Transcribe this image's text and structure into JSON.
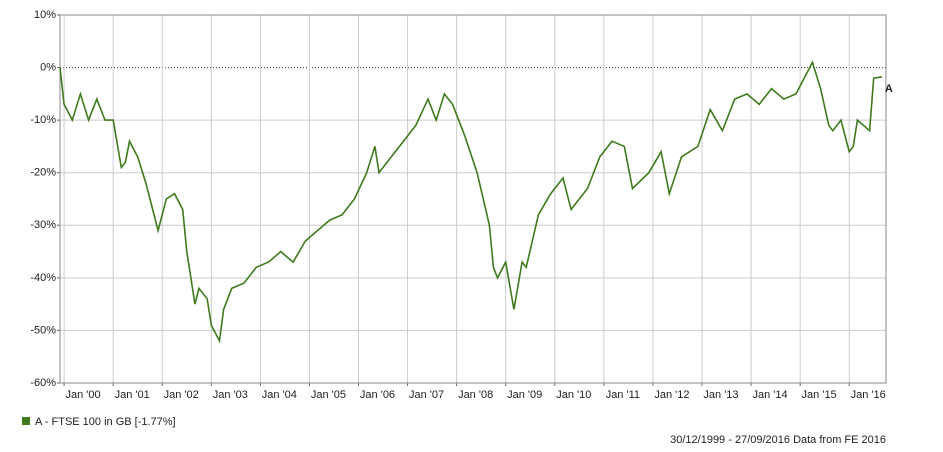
{
  "chart_data": {
    "type": "line",
    "x": [
      "1999-12",
      "2000-01",
      "2000-03",
      "2000-05",
      "2000-07",
      "2000-09",
      "2000-11",
      "2001-01",
      "2001-03",
      "2001-04",
      "2001-05",
      "2001-07",
      "2001-09",
      "2001-10",
      "2001-12",
      "2002-02",
      "2002-04",
      "2002-06",
      "2002-07",
      "2002-08",
      "2002-09",
      "2002-10",
      "2002-12",
      "2003-01",
      "2003-03",
      "2003-04",
      "2003-06",
      "2003-09",
      "2003-12",
      "2004-03",
      "2004-06",
      "2004-09",
      "2004-12",
      "2005-03",
      "2005-06",
      "2005-09",
      "2005-12",
      "2006-03",
      "2006-05",
      "2006-06",
      "2006-09",
      "2006-12",
      "2007-03",
      "2007-06",
      "2007-08",
      "2007-10",
      "2007-12",
      "2008-03",
      "2008-06",
      "2008-09",
      "2008-10",
      "2008-11",
      "2009-01",
      "2009-03",
      "2009-05",
      "2009-06",
      "2009-09",
      "2009-12",
      "2010-03",
      "2010-05",
      "2010-09",
      "2010-12",
      "2011-03",
      "2011-06",
      "2011-08",
      "2011-12",
      "2012-03",
      "2012-05",
      "2012-08",
      "2012-12",
      "2013-03",
      "2013-06",
      "2013-09",
      "2013-12",
      "2014-03",
      "2014-06",
      "2014-09",
      "2014-12",
      "2015-02",
      "2015-04",
      "2015-06",
      "2015-08",
      "2015-09",
      "2015-11",
      "2016-01",
      "2016-02",
      "2016-03",
      "2016-06",
      "2016-07",
      "2016-09"
    ],
    "series": [
      {
        "name": "A - FTSE 100 in GB [-1.77%]",
        "short_name": "A",
        "color": "#3f7a1c",
        "values": [
          0,
          -7,
          -10,
          -5,
          -10,
          -6,
          -10,
          -10,
          -19,
          -18,
          -14,
          -17,
          -22,
          -25,
          -31,
          -25,
          -24,
          -27,
          -35,
          -40,
          -45,
          -42,
          -44,
          -49,
          -52,
          -46,
          -42,
          -41,
          -38,
          -37,
          -35,
          -37,
          -33,
          -31,
          -29,
          -28,
          -25,
          -20,
          -15,
          -20,
          -17,
          -14,
          -11,
          -6,
          -10,
          -5,
          -7,
          -13,
          -20,
          -30,
          -38,
          -40,
          -37,
          -46,
          -37,
          -38,
          -28,
          -24,
          -21,
          -27,
          -23,
          -17,
          -14,
          -15,
          -23,
          -20,
          -16,
          -24,
          -17,
          -15,
          -8,
          -12,
          -6,
          -5,
          -7,
          -4,
          -6,
          -5,
          -2,
          1,
          -4,
          -11,
          -12,
          -10,
          -16,
          -15,
          -10,
          -12,
          -2,
          -1.77
        ]
      }
    ],
    "xlim": [
      "1999-12",
      "2016-10"
    ],
    "xticks": [
      {
        "value": "2000-01",
        "label": "Jan '00"
      },
      {
        "value": "2001-01",
        "label": "Jan '01"
      },
      {
        "value": "2002-01",
        "label": "Jan '02"
      },
      {
        "value": "2003-01",
        "label": "Jan '03"
      },
      {
        "value": "2004-01",
        "label": "Jan '04"
      },
      {
        "value": "2005-01",
        "label": "Jan '05"
      },
      {
        "value": "2006-01",
        "label": "Jan '06"
      },
      {
        "value": "2007-01",
        "label": "Jan '07"
      },
      {
        "value": "2008-01",
        "label": "Jan '08"
      },
      {
        "value": "2009-01",
        "label": "Jan '09"
      },
      {
        "value": "2010-01",
        "label": "Jan '10"
      },
      {
        "value": "2011-01",
        "label": "Jan '11"
      },
      {
        "value": "2012-01",
        "label": "Jan '12"
      },
      {
        "value": "2013-01",
        "label": "Jan '13"
      },
      {
        "value": "2014-01",
        "label": "Jan '14"
      },
      {
        "value": "2015-01",
        "label": "Jan '15"
      },
      {
        "value": "2016-01",
        "label": "Jan '16"
      }
    ],
    "ylim": [
      -60,
      10
    ],
    "yticks": [
      {
        "value": 10,
        "label": "10%"
      },
      {
        "value": 0,
        "label": "0%"
      },
      {
        "value": -10,
        "label": "-10%"
      },
      {
        "value": -20,
        "label": "-20%"
      },
      {
        "value": -30,
        "label": "-30%"
      },
      {
        "value": -40,
        "label": "-40%"
      },
      {
        "value": -50,
        "label": "-50%"
      },
      {
        "value": -60,
        "label": "-60%"
      }
    ],
    "grid": true,
    "footer": "30/12/1999 - 27/09/2016 Data from FE 2016"
  }
}
